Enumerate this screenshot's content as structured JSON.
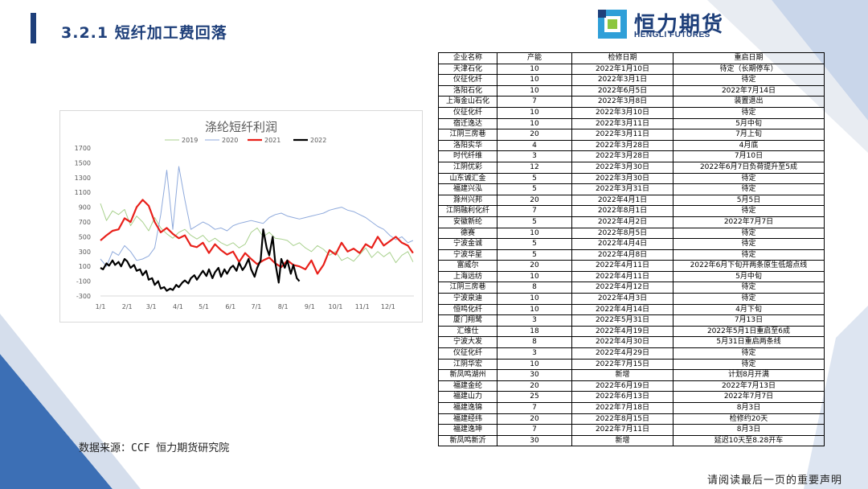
{
  "slide": {
    "title": "3.2.1 短纤加工费回落",
    "logo_cn": "恒力期货",
    "logo_en": "HENGLI FUTURES",
    "source": "数据来源：CCF 恒力期货研究院",
    "footer": "请阅读最后一页的重要声明"
  },
  "colors": {
    "brand": "#1e3f7a",
    "series_2019": "#a9d18e",
    "series_2020": "#8faadc",
    "series_2021": "#e8201a",
    "series_2022": "#000000"
  },
  "chart_data": {
    "type": "line",
    "title": "涤纶短纤利润",
    "x_ticks": [
      "1/1",
      "2/1",
      "3/1",
      "4/1",
      "5/1",
      "6/1",
      "7/1",
      "8/1",
      "9/1",
      "10/1",
      "11/1",
      "12/1"
    ],
    "y_ticks": [
      "1700",
      "1500",
      "1300",
      "1100",
      "900",
      "700",
      "500",
      "300",
      "100",
      "-100",
      "-300"
    ],
    "ylim": [
      -300,
      1700
    ],
    "legend_position": "top",
    "series": [
      {
        "name": "2019",
        "color": "#a9d18e",
        "width": 1,
        "x": [
          1,
          8,
          15,
          22,
          29,
          36,
          43,
          50,
          57,
          64,
          71,
          78,
          85,
          92,
          99,
          106,
          113,
          120,
          127,
          134,
          141,
          148,
          155,
          162,
          169,
          176,
          183,
          190,
          197,
          204,
          211,
          218,
          225,
          232,
          239,
          246,
          253,
          260,
          267,
          274,
          281,
          288,
          295,
          302,
          309,
          316,
          323,
          330,
          337,
          344,
          351,
          358,
          364
        ],
        "values": [
          950,
          720,
          850,
          800,
          870,
          650,
          780,
          700,
          580,
          760,
          620,
          540,
          480,
          560,
          600,
          520,
          470,
          520,
          430,
          480,
          420,
          380,
          420,
          350,
          400,
          560,
          620,
          500,
          560,
          480,
          470,
          450,
          380,
          420,
          350,
          300,
          380,
          330,
          250,
          300,
          180,
          220,
          170,
          260,
          350,
          220,
          300,
          230,
          290,
          150,
          250,
          300,
          160
        ]
      },
      {
        "name": "2020",
        "color": "#8faadc",
        "width": 1,
        "x": [
          1,
          8,
          15,
          22,
          29,
          36,
          43,
          50,
          57,
          64,
          71,
          78,
          85,
          92,
          99,
          106,
          113,
          120,
          127,
          134,
          141,
          148,
          155,
          162,
          169,
          176,
          183,
          190,
          197,
          204,
          211,
          218,
          225,
          232,
          239,
          246,
          253,
          260,
          267,
          274,
          281,
          288,
          295,
          302,
          309,
          316,
          323,
          330,
          337,
          344,
          351,
          358,
          364
        ],
        "values": [
          200,
          100,
          300,
          250,
          380,
          300,
          180,
          200,
          240,
          350,
          800,
          1400,
          600,
          1450,
          1000,
          600,
          650,
          700,
          660,
          600,
          620,
          580,
          650,
          680,
          700,
          720,
          700,
          680,
          760,
          800,
          820,
          780,
          760,
          740,
          760,
          780,
          800,
          820,
          860,
          880,
          900,
          860,
          840,
          800,
          760,
          700,
          640,
          600,
          520,
          460,
          500,
          420,
          450
        ]
      },
      {
        "name": "2021",
        "color": "#e8201a",
        "width": 2.2,
        "x": [
          1,
          8,
          15,
          22,
          29,
          36,
          43,
          50,
          57,
          64,
          71,
          78,
          85,
          92,
          99,
          106,
          113,
          120,
          127,
          134,
          141,
          148,
          155,
          162,
          169,
          176,
          183,
          190,
          197,
          204,
          211,
          218,
          225,
          232,
          239,
          246,
          253,
          260,
          267,
          274,
          281,
          288,
          295,
          302,
          309,
          316,
          323,
          330,
          337,
          344,
          351,
          358,
          364
        ],
        "values": [
          450,
          520,
          580,
          600,
          750,
          700,
          900,
          1000,
          920,
          700,
          560,
          620,
          540,
          480,
          520,
          380,
          360,
          420,
          280,
          400,
          320,
          260,
          300,
          160,
          280,
          200,
          130,
          180,
          220,
          140,
          90,
          180,
          120,
          100,
          60,
          180,
          0,
          120,
          320,
          260,
          420,
          300,
          340,
          280,
          400,
          350,
          500,
          380,
          440,
          500,
          420,
          380,
          280
        ]
      },
      {
        "name": "2022",
        "color": "#000000",
        "width": 2.2,
        "x": [
          1,
          4,
          8,
          11,
          15,
          18,
          22,
          25,
          29,
          32,
          36,
          40,
          43,
          47,
          50,
          54,
          57,
          61,
          64,
          68,
          71,
          75,
          78,
          82,
          85,
          89,
          92,
          96,
          99,
          103,
          106,
          110,
          113,
          117,
          120,
          124,
          127,
          131,
          134,
          138,
          141,
          145,
          148,
          152,
          155,
          159,
          162,
          166,
          169,
          173,
          176,
          180,
          183,
          187,
          190,
          194,
          197,
          201,
          204,
          208,
          211,
          215,
          218,
          222,
          225,
          229,
          232
        ],
        "values": [
          80,
          60,
          140,
          110,
          180,
          120,
          160,
          100,
          200,
          170,
          80,
          120,
          40,
          60,
          -20,
          40,
          -80,
          -60,
          -150,
          -100,
          -200,
          -180,
          -230,
          -200,
          -220,
          -150,
          -180,
          -120,
          -90,
          -130,
          -60,
          -20,
          -80,
          -10,
          40,
          -30,
          60,
          -60,
          20,
          80,
          -40,
          60,
          0,
          80,
          110,
          40,
          150,
          50,
          100,
          200,
          60,
          -40,
          80,
          180,
          600,
          350,
          250,
          500,
          150,
          -120,
          200,
          80,
          180,
          0,
          120,
          -60,
          -100
        ]
      }
    ]
  },
  "table": {
    "headers": [
      "企业名称",
      "产能",
      "检修日期",
      "重启日期"
    ],
    "rows": [
      [
        "天津石化",
        "10",
        "2022年1月10日",
        "待定（长期停车）"
      ],
      [
        "仪征化纤",
        "10",
        "2022年3月1日",
        "待定"
      ],
      [
        "洛阳石化",
        "10",
        "2022年6月5日",
        "2022年7月14日"
      ],
      [
        "上海金山石化",
        "7",
        "2022年3月8日",
        "装置退出"
      ],
      [
        "仪征化纤",
        "10",
        "2022年3月10日",
        "待定"
      ],
      [
        "宿迁逸达",
        "10",
        "2022年3月11日",
        "5月中旬"
      ],
      [
        "江阴三房巷",
        "20",
        "2022年3月11日",
        "7月上旬"
      ],
      [
        "洛阳实华",
        "4",
        "2022年3月28日",
        "4月底"
      ],
      [
        "时代纤维",
        "3",
        "2022年3月28日",
        "7月10日"
      ],
      [
        "江阴优彩",
        "12",
        "2022年3月30日",
        "2022年6月7日负荷提升至5成"
      ],
      [
        "山东诚汇金",
        "5",
        "2022年3月30日",
        "待定"
      ],
      [
        "福建兴泓",
        "5",
        "2022年3月31日",
        "待定"
      ],
      [
        "滁州兴邦",
        "20",
        "2022年4月1日",
        "5月5日"
      ],
      [
        "江阴融利化纤",
        "7",
        "2022年8月1日",
        "待定"
      ],
      [
        "安徽新纶",
        "5",
        "2022年4月2日",
        "2022年7月7日"
      ],
      [
        "德赛",
        "10",
        "2022年8月5日",
        "待定"
      ],
      [
        "宁波金诚",
        "5",
        "2022年4月4日",
        "待定"
      ],
      [
        "宁波华星",
        "5",
        "2022年4月8日",
        "待定"
      ],
      [
        "富威尔",
        "20",
        "2022年4月11日",
        "2022年6月下旬开两条原生低熔点线"
      ],
      [
        "上海远纺",
        "10",
        "2022年4月11日",
        "5月中旬"
      ],
      [
        "江阴三房巷",
        "8",
        "2022年4月12日",
        "待定"
      ],
      [
        "宁波泉迪",
        "10",
        "2022年4月3日",
        "待定"
      ],
      [
        "恒鸣化纤",
        "10",
        "2022年4月14日",
        "4月下旬"
      ],
      [
        "厦门翔鹭",
        "3",
        "2022年5月31日",
        "7月13日"
      ],
      [
        "汇维仕",
        "18",
        "2022年4月19日",
        "2022年5月1日重启至6成"
      ],
      [
        "宁波大发",
        "8",
        "2022年4月30日",
        "5月31日重启两条线"
      ],
      [
        "仪征化纤",
        "3",
        "2022年4月29日",
        "待定"
      ],
      [
        "江阴华宏",
        "10",
        "2022年7月15日",
        "待定"
      ],
      [
        "新凤鸣湖州",
        "30",
        "新增",
        "计划8月开满"
      ],
      [
        "福建金纶",
        "20",
        "2022年6月19日",
        "2022年7月13日"
      ],
      [
        "福建山力",
        "25",
        "2022年6月13日",
        "2022年7月7日"
      ],
      [
        "福建逸锦",
        "7",
        "2022年7月18日",
        "8月3日"
      ],
      [
        "福建经纬",
        "20",
        "2022年8月15日",
        "检修约20天"
      ],
      [
        "福建逸坤",
        "7",
        "2022年7月11日",
        "8月3日"
      ],
      [
        "新凤鸣新沂",
        "30",
        "新增",
        "延迟10天至8.28开车"
      ]
    ]
  }
}
